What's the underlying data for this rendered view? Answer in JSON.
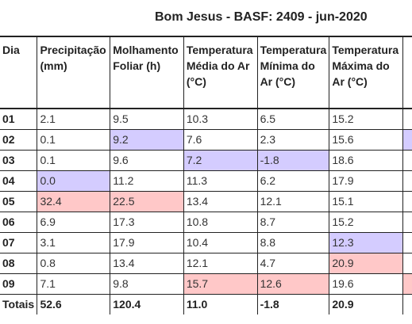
{
  "title": "Bom Jesus - BASF: 2409 - jun-2020",
  "columns": [
    "Dia",
    "Precipitação (mm)",
    "Molhamento Foliar (h)",
    "Temperatura Média do Ar (°C)",
    "Temperatura Mínima do Ar (°C)",
    "Temperatura Máxima do Ar (°C)",
    ""
  ],
  "highlight_colors": {
    "low": "#d4ccff",
    "high": "#ffc8c8"
  },
  "rows": [
    {
      "dia": "01",
      "values": [
        "2.1",
        "9.5",
        "10.3",
        "6.5",
        "15.2",
        ""
      ],
      "hl": [
        "",
        "",
        "",
        "",
        "",
        ""
      ]
    },
    {
      "dia": "02",
      "values": [
        "0.1",
        "9.2",
        "7.6",
        "2.3",
        "15.6",
        ""
      ],
      "hl": [
        "",
        "low",
        "",
        "",
        "",
        "low"
      ]
    },
    {
      "dia": "03",
      "values": [
        "0.1",
        "9.6",
        "7.2",
        "-1.8",
        "18.6",
        ""
      ],
      "hl": [
        "",
        "",
        "low",
        "low",
        "",
        ""
      ]
    },
    {
      "dia": "04",
      "values": [
        "0.0",
        "11.2",
        "11.3",
        "6.2",
        "17.9",
        ""
      ],
      "hl": [
        "low",
        "",
        "",
        "",
        "",
        ""
      ]
    },
    {
      "dia": "05",
      "values": [
        "32.4",
        "22.5",
        "13.4",
        "12.1",
        "15.1",
        ""
      ],
      "hl": [
        "high",
        "high",
        "",
        "",
        "",
        ""
      ]
    },
    {
      "dia": "06",
      "values": [
        "6.9",
        "17.3",
        "10.8",
        "8.7",
        "15.2",
        ""
      ],
      "hl": [
        "",
        "",
        "",
        "",
        "",
        ""
      ]
    },
    {
      "dia": "07",
      "values": [
        "3.1",
        "17.9",
        "10.4",
        "8.8",
        "12.3",
        ""
      ],
      "hl": [
        "",
        "",
        "",
        "",
        "low",
        ""
      ]
    },
    {
      "dia": "08",
      "values": [
        "0.8",
        "13.4",
        "12.1",
        "4.7",
        "20.9",
        ""
      ],
      "hl": [
        "",
        "",
        "",
        "",
        "high",
        ""
      ]
    },
    {
      "dia": "09",
      "values": [
        "7.1",
        "9.8",
        "15.7",
        "12.6",
        "19.6",
        ""
      ],
      "hl": [
        "",
        "",
        "high",
        "high",
        "",
        "high"
      ]
    }
  ],
  "totals": {
    "label": "Totais",
    "values": [
      "52.6",
      "120.4",
      "11.0",
      "-1.8",
      "20.9",
      ""
    ]
  }
}
